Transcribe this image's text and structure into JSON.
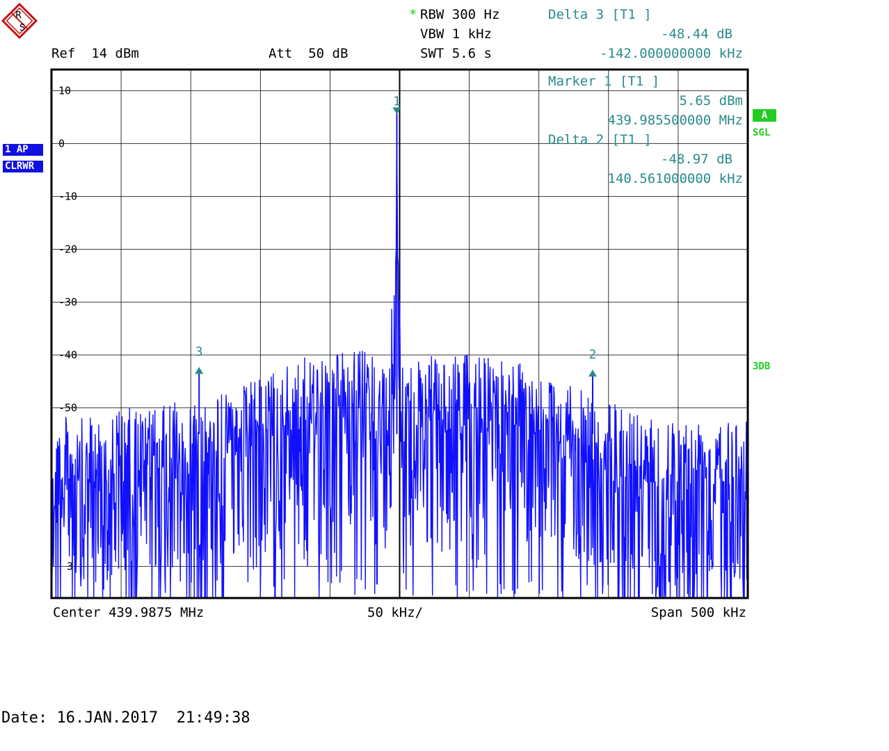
{
  "logo_text": [
    "R",
    "S"
  ],
  "header": {
    "rbw_star": "*",
    "rbw": "RBW 300 Hz",
    "vbw": "VBW 1 kHz",
    "swt": "SWT 5.6 s",
    "ref": "Ref  14 dBm",
    "att": "Att  50 dB"
  },
  "delta3": {
    "title": "Delta 3 [T1 ]",
    "level": "-48.44 dB",
    "freq": "-142.000000000 kHz"
  },
  "marker1": {
    "title": "Marker 1 [T1 ]",
    "level": "5.65 dBm",
    "freq": "439.985500000 MHz"
  },
  "delta2": {
    "title": "Delta 2 [T1 ]",
    "level": "-48.97 dB",
    "freq": "140.561000000 kHz"
  },
  "left_badges": {
    "trace": "1 AP",
    "mode": "CLRWR"
  },
  "right_badges": {
    "a": "A",
    "sgl": "SGL",
    "three_db": "3DB"
  },
  "footer": {
    "center": "Center 439.9875 MHz",
    "div": "50 kHz/",
    "span": "Span 500 kHz",
    "date": "Date: 16.JAN.2017  21:49:38"
  },
  "colors": {
    "trace": "#1010ff",
    "marker": "#2a8a8a",
    "status": "#22cc22",
    "grid": "#000000"
  },
  "chart_data": {
    "type": "line",
    "title": "",
    "xlabel": "",
    "ylabel": "",
    "x_unit": "MHz",
    "y_unit": "dBm",
    "xlim": [
      439.7375,
      440.2375
    ],
    "ylim": [
      -86,
      14
    ],
    "y_ticks": [
      10,
      0,
      -10,
      -20,
      -30,
      -40,
      -50
    ],
    "y_tick_labels": [
      "10",
      "0",
      "-10",
      "-20",
      "-30",
      "-40",
      "-50"
    ],
    "extra_y_tick_labels": [
      {
        "value": -80,
        "label": "3"
      }
    ],
    "x_divisions": 10,
    "grid": true,
    "series": [
      {
        "x": [
          439.7375,
          439.7625,
          439.7875,
          439.8125,
          439.8375,
          439.8625,
          439.8875,
          439.9125,
          439.9375,
          439.9625,
          439.98,
          439.985,
          439.9855,
          439.986,
          439.99,
          440.0125,
          440.0375,
          440.0625,
          440.0875,
          440.1125,
          440.1375,
          440.1625,
          440.1875,
          440.2125,
          440.2375
        ],
        "y": [
          -59,
          -60,
          -58,
          -58,
          -56,
          -55,
          -52,
          -49,
          -47,
          -47,
          -50,
          -20,
          5.65,
          -20,
          -50,
          -48,
          -48,
          -48,
          -51,
          -54,
          -57,
          -58,
          -60,
          -59,
          -59
        ]
      }
    ],
    "markers": [
      {
        "label": "1",
        "x": 439.9855,
        "y": 5.65,
        "direction": "down"
      },
      {
        "label": "2",
        "x": 440.1261,
        "y": -43.3,
        "direction": "up"
      },
      {
        "label": "3",
        "x": 439.8435,
        "y": -42.8,
        "direction": "up"
      }
    ]
  }
}
